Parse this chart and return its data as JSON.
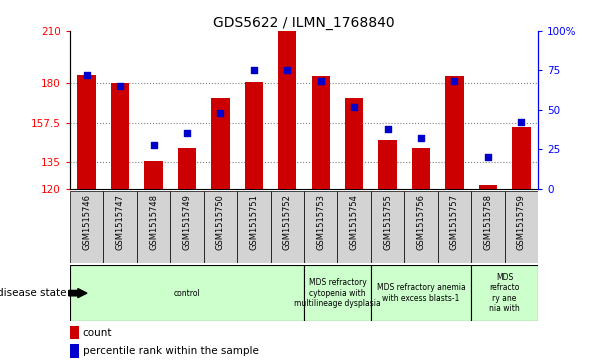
{
  "title": "GDS5622 / ILMN_1768840",
  "samples": [
    "GSM1515746",
    "GSM1515747",
    "GSM1515748",
    "GSM1515749",
    "GSM1515750",
    "GSM1515751",
    "GSM1515752",
    "GSM1515753",
    "GSM1515754",
    "GSM1515755",
    "GSM1515756",
    "GSM1515757",
    "GSM1515758",
    "GSM1515759"
  ],
  "counts": [
    185,
    180,
    136,
    143,
    172,
    181,
    210,
    184,
    172,
    148,
    143,
    184,
    122,
    155
  ],
  "percentile_ranks": [
    72,
    65,
    28,
    35,
    48,
    75,
    75,
    68,
    52,
    38,
    32,
    68,
    20,
    42
  ],
  "ylim_left": [
    120,
    210
  ],
  "ylim_right": [
    0,
    100
  ],
  "yticks_left": [
    120,
    135,
    157.5,
    180,
    210
  ],
  "yticks_right": [
    0,
    25,
    50,
    75,
    100
  ],
  "bar_color": "#cc0000",
  "percentile_color": "#0000cc",
  "bar_width": 0.55,
  "disease_groups": [
    {
      "label": "control",
      "start": 0,
      "end": 7
    },
    {
      "label": "MDS refractory\ncytopenia with\nmultilineage dysplasia",
      "start": 7,
      "end": 9
    },
    {
      "label": "MDS refractory anemia\nwith excess blasts-1",
      "start": 9,
      "end": 12
    },
    {
      "label": "MDS\nrefracto\nry ane\nnia with",
      "start": 12,
      "end": 14
    }
  ],
  "disease_group_color": "#ccffcc",
  "disease_label": "disease state",
  "legend_count_label": "count",
  "legend_pct_label": "percentile rank within the sample",
  "sample_box_color": "#d3d3d3",
  "grid_dotted_values": [
    135,
    157.5,
    180
  ],
  "title_fontsize": 10
}
